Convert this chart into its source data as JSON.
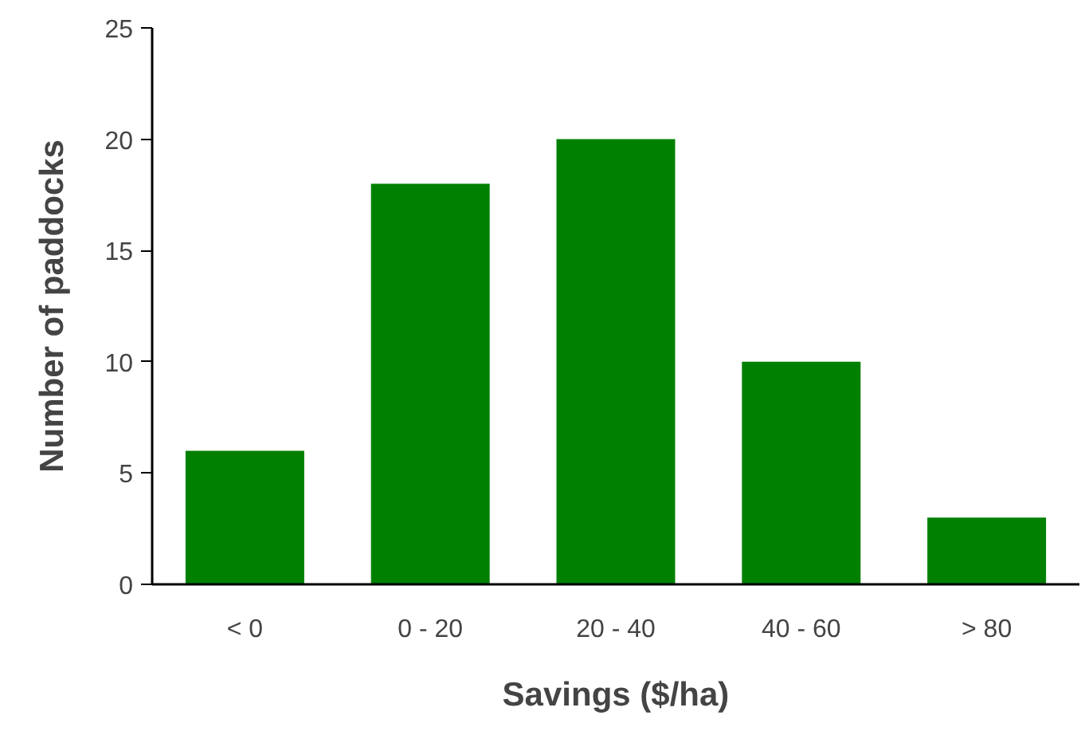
{
  "chart_data": {
    "type": "bar",
    "xlabel": "Savings ($/ha)",
    "ylabel": "Number of paddocks",
    "categories": [
      "< 0",
      "0 - 20",
      "20 - 40",
      "40 - 60",
      "> 80"
    ],
    "values": [
      6,
      18,
      20,
      10,
      3
    ],
    "color": "#008000",
    "ylim": [
      0,
      25
    ],
    "yticks": [
      0,
      5,
      10,
      15,
      20,
      25
    ],
    "grid": false
  }
}
